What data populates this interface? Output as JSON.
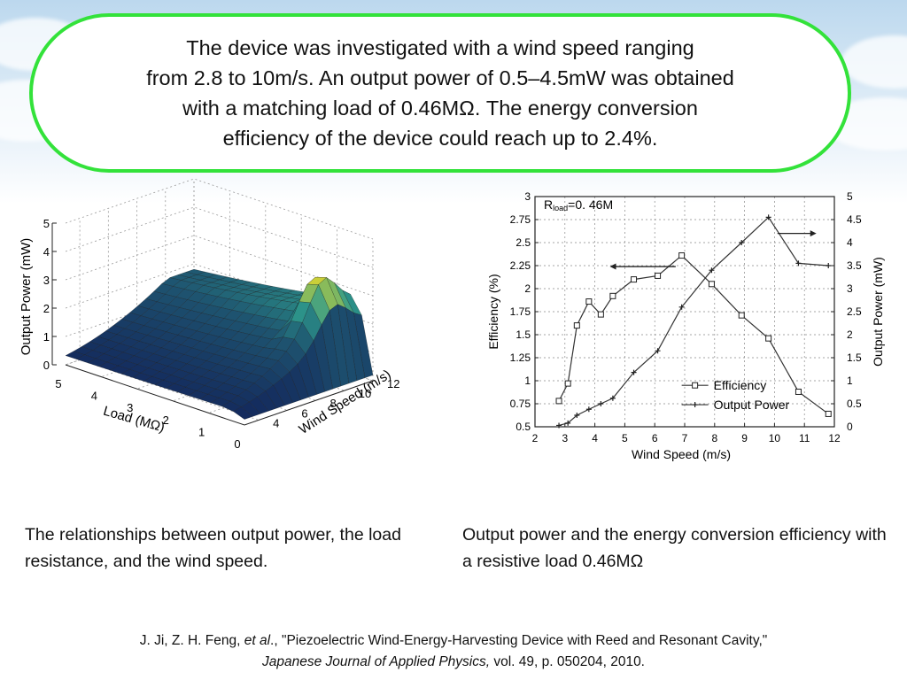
{
  "bubble": {
    "lines": [
      "The device was investigated with a wind speed ranging",
      "from 2.8 to 10m/s. An output power of 0.5–4.5mW was obtained",
      "with a matching load of 0.46MΩ. The energy conversion",
      "efficiency  of the device could reach up to 2.4%."
    ],
    "border_color": "#33e23a"
  },
  "captions": {
    "left": "The relationships between output power, the load resistance, and the wind speed.",
    "right": "Output power and the energy conversion efficiency with a resistive load 0.46MΩ"
  },
  "citation": {
    "authors": "J. Ji, Z. H. Feng, ",
    "etal": "et al",
    "title": "., \"Piezoelectric Wind-Energy-Harvesting Device with Reed and Resonant Cavity,\"",
    "journal": "Japanese Journal of Applied Physics,",
    "rest": " vol. 49, p. 050204, 2010."
  },
  "chart_data": [
    {
      "type": "surface",
      "zlabel": "Output Power (mW)",
      "xlabel": "Load (MΩ)",
      "ylabel": "Wind Speed (m/s)",
      "x_ticks": [
        "5",
        "4",
        "3",
        "2",
        "1",
        "0"
      ],
      "y_ticks": [
        "4",
        "6",
        "8",
        "10",
        "12"
      ],
      "z_ticks": [
        "0",
        "1",
        "2",
        "3",
        "4",
        "5"
      ],
      "xlim": [
        0,
        5
      ],
      "ylim": [
        3,
        12
      ],
      "zlim": [
        0,
        5
      ],
      "peak": {
        "load": 0.46,
        "wind_speed": 10,
        "power": 4.5
      },
      "colormap": "jet"
    },
    {
      "type": "line",
      "annotation": {
        "main": "R",
        "sub": "load",
        "rest": "=0. 46M"
      },
      "xlabel": "Wind Speed (m/s)",
      "ylabel_left": "Efficiency (%)",
      "ylabel_right": "Output Power (mW)",
      "xlim": [
        2,
        12
      ],
      "ylim_left": [
        0.5,
        3
      ],
      "ylim_right": [
        0,
        5
      ],
      "x_ticks": [
        "2",
        "3",
        "4",
        "5",
        "6",
        "7",
        "8",
        "9",
        "10",
        "11",
        "12"
      ],
      "y_ticks_left": [
        "0.5",
        "0.75",
        "1",
        "1.25",
        "1.5",
        "1.75",
        "2",
        "2.25",
        "2.5",
        "2.75",
        "3"
      ],
      "y_ticks_right": [
        "0",
        "0.5",
        "1",
        "1.5",
        "2",
        "2.5",
        "3",
        "3.5",
        "4",
        "4.5",
        "5"
      ],
      "series": [
        {
          "name": "Efficiency",
          "axis": "left",
          "marker": "square",
          "x": [
            2.8,
            3.1,
            3.4,
            3.8,
            4.2,
            4.6,
            5.3,
            6.1,
            6.9,
            7.9,
            8.9,
            9.8,
            10.8,
            11.8
          ],
          "y": [
            0.78,
            0.97,
            1.6,
            1.86,
            1.72,
            1.92,
            2.1,
            2.14,
            2.36,
            2.05,
            1.71,
            1.46,
            0.88,
            0.64
          ]
        },
        {
          "name": "Output Power",
          "axis": "right",
          "marker": "plus",
          "x": [
            2.8,
            3.1,
            3.4,
            3.8,
            4.2,
            4.6,
            5.3,
            6.1,
            6.9,
            7.9,
            8.9,
            9.8,
            10.8,
            11.8
          ],
          "y": [
            0.03,
            0.08,
            0.25,
            0.38,
            0.5,
            0.62,
            1.18,
            1.65,
            2.6,
            3.4,
            4.0,
            4.55,
            3.55,
            3.5
          ]
        }
      ]
    }
  ]
}
